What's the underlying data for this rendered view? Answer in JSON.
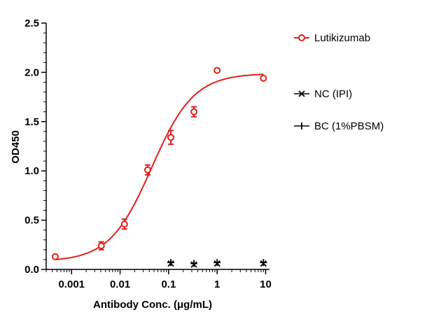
{
  "chart_data": {
    "type": "scatter",
    "xlabel": "Antibody Conc. (μg/mL)",
    "ylabel": "OD450",
    "x_scale": "log",
    "xlim": [
      0.0003,
      12
    ],
    "ylim": [
      0,
      2.5
    ],
    "x_ticks": [
      {
        "value": 0.001,
        "label": "0.001"
      },
      {
        "value": 0.01,
        "label": "0.01"
      },
      {
        "value": 0.1,
        "label": "0.1"
      },
      {
        "value": 1,
        "label": "1"
      },
      {
        "value": 10,
        "label": "10"
      }
    ],
    "y_ticks": [
      {
        "value": 0,
        "label": "0.0"
      },
      {
        "value": 0.5,
        "label": "0.5"
      },
      {
        "value": 1.0,
        "label": "1.0"
      },
      {
        "value": 1.5,
        "label": "1.5"
      },
      {
        "value": 2.0,
        "label": "2.0"
      },
      {
        "value": 2.5,
        "label": "2.5"
      }
    ],
    "grid": false,
    "legend_position": "right",
    "series": [
      {
        "name": "Lutikizumab",
        "color": "#e0201b",
        "marker": "open-circle",
        "fit_curve": true,
        "points": [
          {
            "x": 0.00046,
            "y": 0.13,
            "err": 0.0
          },
          {
            "x": 0.0041,
            "y": 0.24,
            "err": 0.04
          },
          {
            "x": 0.0123,
            "y": 0.46,
            "err": 0.05
          },
          {
            "x": 0.037,
            "y": 1.01,
            "err": 0.05
          },
          {
            "x": 0.111,
            "y": 1.34,
            "err": 0.07
          },
          {
            "x": 0.333,
            "y": 1.6,
            "err": 0.05
          },
          {
            "x": 1.0,
            "y": 2.02,
            "err": 0.0
          },
          {
            "x": 9.0,
            "y": 1.94,
            "err": 0.0
          }
        ]
      },
      {
        "name": "NC (IPI)",
        "color": "#000000",
        "marker": "x",
        "points": [
          {
            "x": 0.111,
            "y": 0.06
          },
          {
            "x": 0.333,
            "y": 0.05
          },
          {
            "x": 1.0,
            "y": 0.06
          },
          {
            "x": 9.0,
            "y": 0.06
          }
        ]
      },
      {
        "name": "BC (1%PBSM)",
        "color": "#000000",
        "marker": "plus",
        "points": [
          {
            "x": 0.111,
            "y": 0.07
          },
          {
            "x": 0.333,
            "y": 0.06
          },
          {
            "x": 1.0,
            "y": 0.07
          },
          {
            "x": 9.0,
            "y": 0.07
          }
        ]
      }
    ]
  }
}
